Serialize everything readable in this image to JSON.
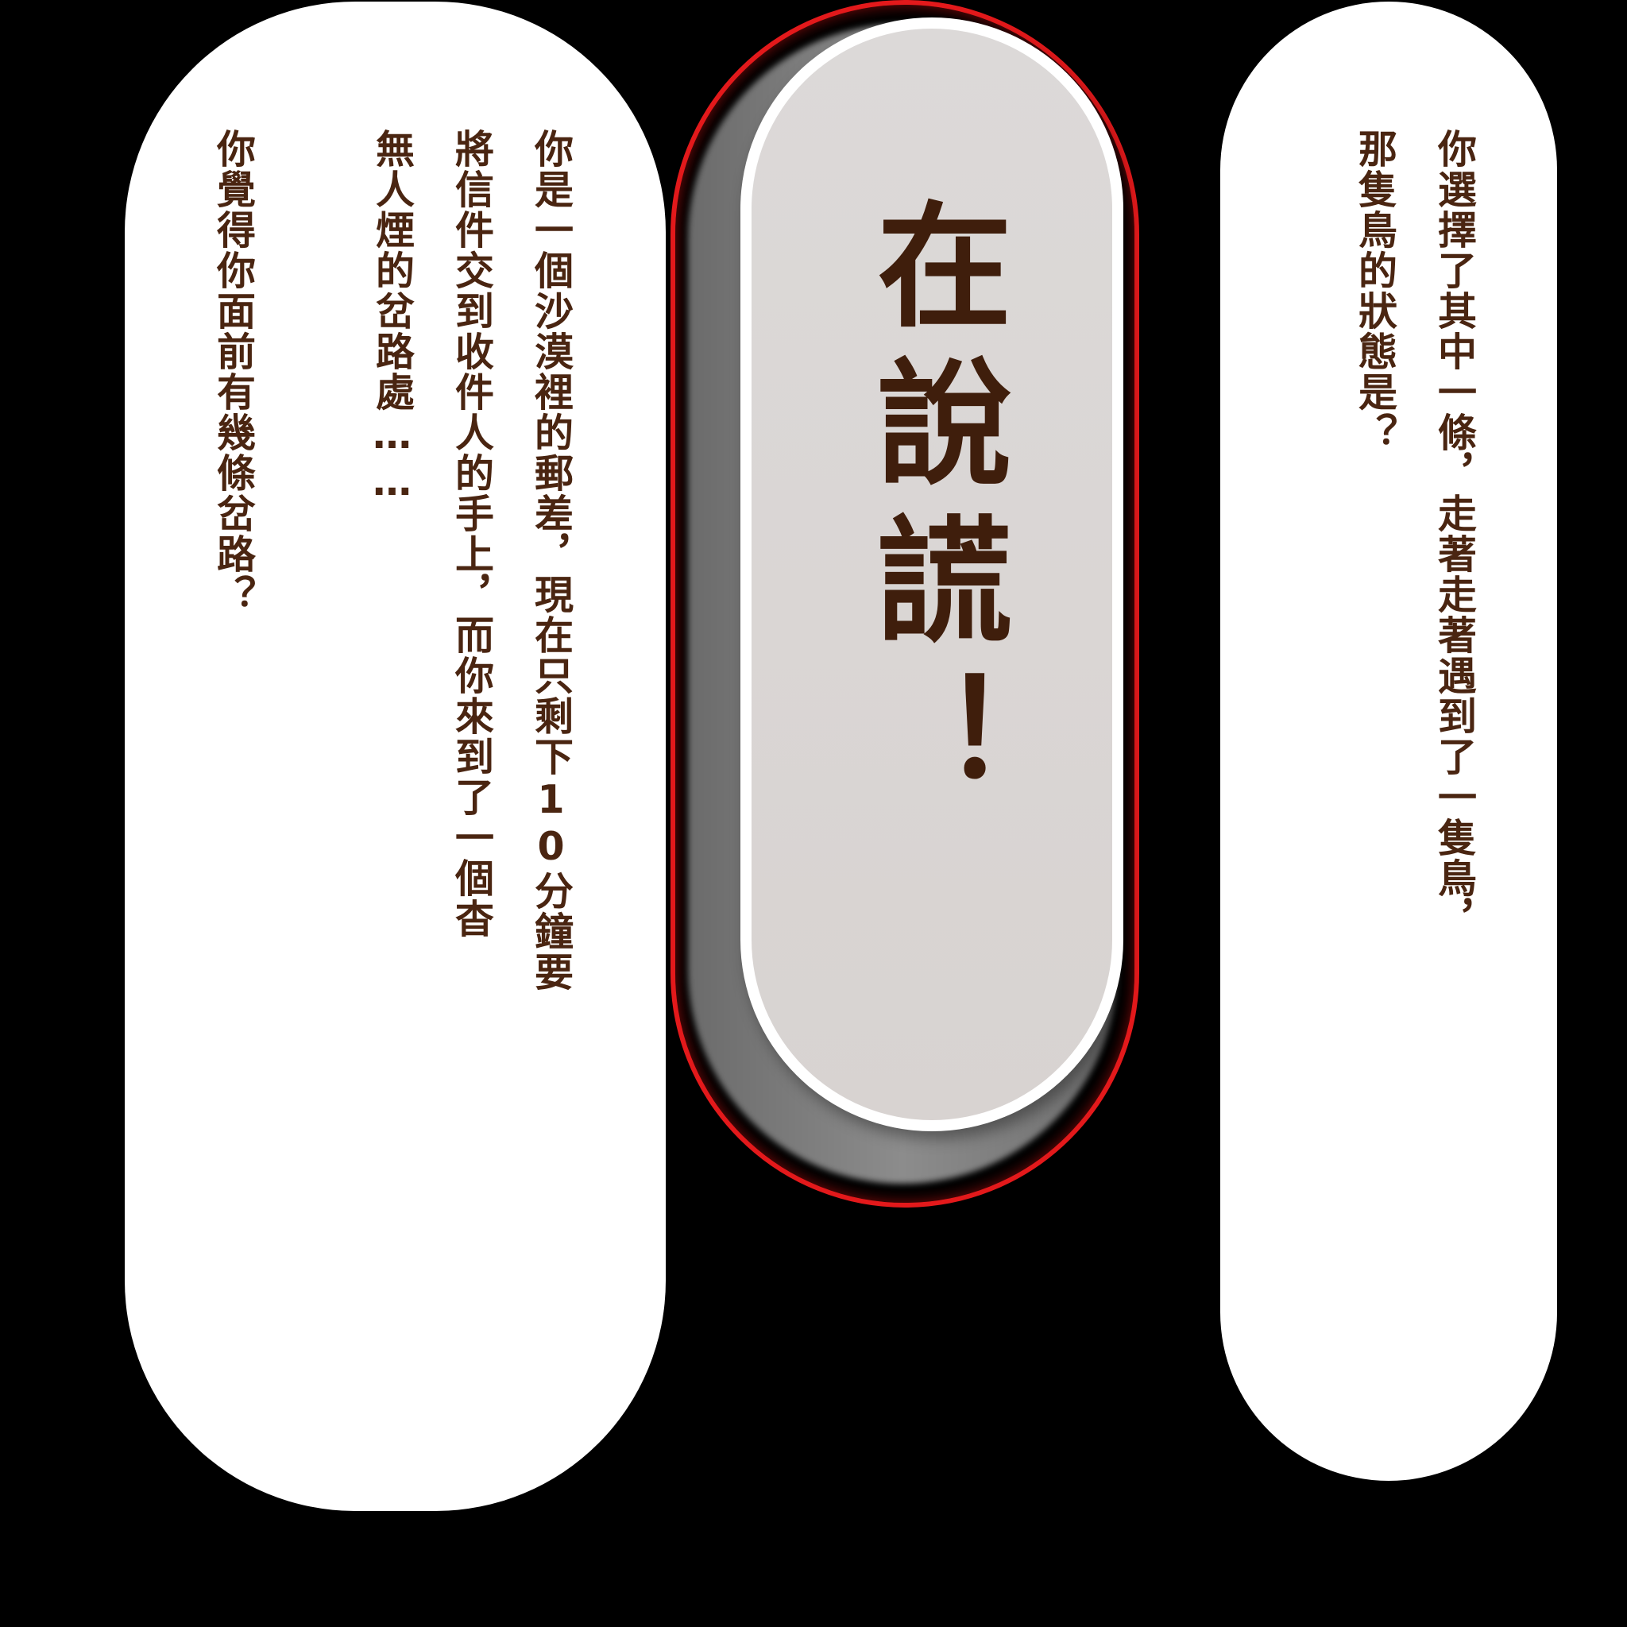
{
  "left_card": {
    "lines": [
      "你是一個沙漠裡的郵差，現在只剩下10分鐘要",
      "將信件交到收件人的手上，而你來到了一個杳",
      "無人煙的岔路處……",
      "",
      "你覺得你面前有幾條岔路？"
    ]
  },
  "verdict": {
    "title": "在說謊！"
  },
  "right_card": {
    "lines": [
      "你選擇了其中一條，走著走著遇到了一隻鳥，",
      "那隻鳥的狀態是？"
    ]
  },
  "colors": {
    "background": "#000000",
    "card": "#ffffff",
    "text": "#4a2511",
    "title": "#3f1e0c",
    "pill_face": "#dcd9d8",
    "pill_border": "#e3191b"
  }
}
